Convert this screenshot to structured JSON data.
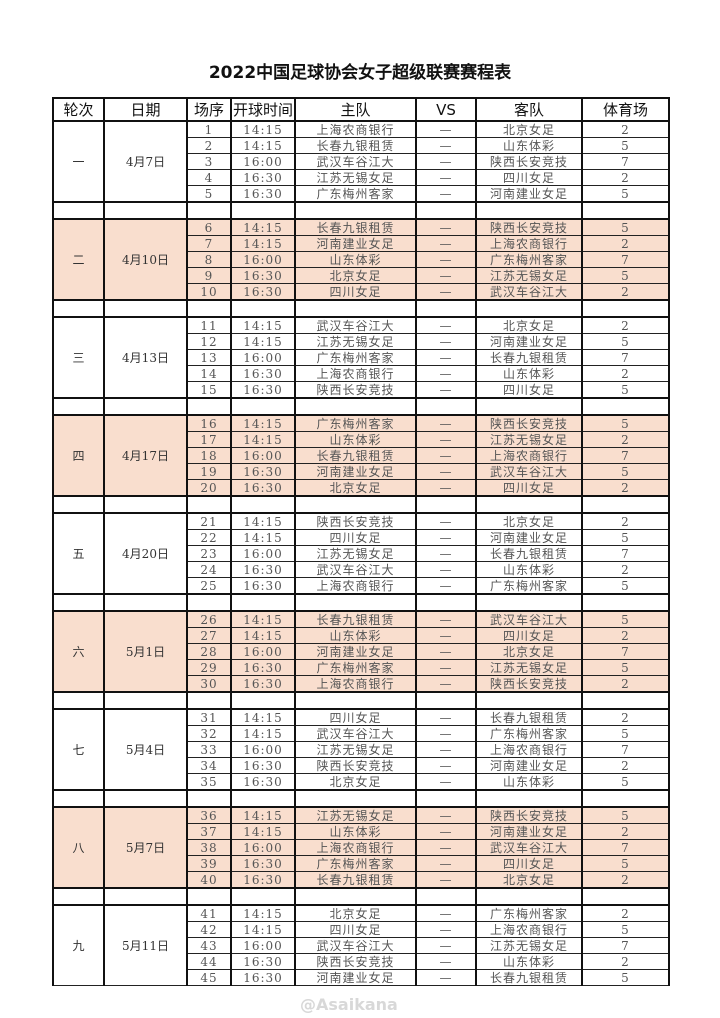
{
  "title": "2022中国足球协会女子超级联赛赛程表",
  "headers": [
    "轮次",
    "日期",
    "场序",
    "开球时间",
    "主队",
    "VS",
    "客队",
    "体育场"
  ],
  "vs_symbol": "—",
  "shade_color": "#f9dece",
  "rounds": [
    {
      "round": "一",
      "date": "4月7日",
      "shaded": false,
      "matches": [
        {
          "no": "1",
          "time": "14:15",
          "home": "上海农商银行",
          "away": "北京女足",
          "stadium": "2"
        },
        {
          "no": "2",
          "time": "14:15",
          "home": "长春九银租赁",
          "away": "山东体彩",
          "stadium": "5"
        },
        {
          "no": "3",
          "time": "16:00",
          "home": "武汉车谷江大",
          "away": "陕西长安竞技",
          "stadium": "7"
        },
        {
          "no": "4",
          "time": "16:30",
          "home": "江苏无锡女足",
          "away": "四川女足",
          "stadium": "2"
        },
        {
          "no": "5",
          "time": "16:30",
          "home": "广东梅州客家",
          "away": "河南建业女足",
          "stadium": "5"
        }
      ]
    },
    {
      "round": "二",
      "date": "4月10日",
      "shaded": true,
      "matches": [
        {
          "no": "6",
          "time": "14:15",
          "home": "长春九银租赁",
          "away": "陕西长安竞技",
          "stadium": "5"
        },
        {
          "no": "7",
          "time": "14:15",
          "home": "河南建业女足",
          "away": "上海农商银行",
          "stadium": "2"
        },
        {
          "no": "8",
          "time": "16:00",
          "home": "山东体彩",
          "away": "广东梅州客家",
          "stadium": "7"
        },
        {
          "no": "9",
          "time": "16:30",
          "home": "北京女足",
          "away": "江苏无锡女足",
          "stadium": "5"
        },
        {
          "no": "10",
          "time": "16:30",
          "home": "四川女足",
          "away": "武汉车谷江大",
          "stadium": "2"
        }
      ]
    },
    {
      "round": "三",
      "date": "4月13日",
      "shaded": false,
      "matches": [
        {
          "no": "11",
          "time": "14:15",
          "home": "武汉车谷江大",
          "away": "北京女足",
          "stadium": "2"
        },
        {
          "no": "12",
          "time": "14:15",
          "home": "江苏无锡女足",
          "away": "河南建业女足",
          "stadium": "5"
        },
        {
          "no": "13",
          "time": "16:00",
          "home": "广东梅州客家",
          "away": "长春九银租赁",
          "stadium": "7"
        },
        {
          "no": "14",
          "time": "16:30",
          "home": "上海农商银行",
          "away": "山东体彩",
          "stadium": "2"
        },
        {
          "no": "15",
          "time": "16:30",
          "home": "陕西长安竞技",
          "away": "四川女足",
          "stadium": "5"
        }
      ]
    },
    {
      "round": "四",
      "date": "4月17日",
      "shaded": true,
      "matches": [
        {
          "no": "16",
          "time": "14:15",
          "home": "广东梅州客家",
          "away": "陕西长安竞技",
          "stadium": "5"
        },
        {
          "no": "17",
          "time": "14:15",
          "home": "山东体彩",
          "away": "江苏无锡女足",
          "stadium": "2"
        },
        {
          "no": "18",
          "time": "16:00",
          "home": "长春九银租赁",
          "away": "上海农商银行",
          "stadium": "7"
        },
        {
          "no": "19",
          "time": "16:30",
          "home": "河南建业女足",
          "away": "武汉车谷江大",
          "stadium": "5"
        },
        {
          "no": "20",
          "time": "16:30",
          "home": "北京女足",
          "away": "四川女足",
          "stadium": "2"
        }
      ]
    },
    {
      "round": "五",
      "date": "4月20日",
      "shaded": false,
      "matches": [
        {
          "no": "21",
          "time": "14:15",
          "home": "陕西长安竞技",
          "away": "北京女足",
          "stadium": "2"
        },
        {
          "no": "22",
          "time": "14:15",
          "home": "四川女足",
          "away": "河南建业女足",
          "stadium": "5"
        },
        {
          "no": "23",
          "time": "16:00",
          "home": "江苏无锡女足",
          "away": "长春九银租赁",
          "stadium": "7"
        },
        {
          "no": "24",
          "time": "16:30",
          "home": "武汉车谷江大",
          "away": "山东体彩",
          "stadium": "2"
        },
        {
          "no": "25",
          "time": "16:30",
          "home": "上海农商银行",
          "away": "广东梅州客家",
          "stadium": "5"
        }
      ]
    },
    {
      "round": "六",
      "date": "5月1日",
      "shaded": true,
      "matches": [
        {
          "no": "26",
          "time": "14:15",
          "home": "长春九银租赁",
          "away": "武汉车谷江大",
          "stadium": "5"
        },
        {
          "no": "27",
          "time": "14:15",
          "home": "山东体彩",
          "away": "四川女足",
          "stadium": "2"
        },
        {
          "no": "28",
          "time": "16:00",
          "home": "河南建业女足",
          "away": "北京女足",
          "stadium": "7"
        },
        {
          "no": "29",
          "time": "16:30",
          "home": "广东梅州客家",
          "away": "江苏无锡女足",
          "stadium": "5"
        },
        {
          "no": "30",
          "time": "16:30",
          "home": "上海农商银行",
          "away": "陕西长安竞技",
          "stadium": "2"
        }
      ]
    },
    {
      "round": "七",
      "date": "5月4日",
      "shaded": false,
      "matches": [
        {
          "no": "31",
          "time": "14:15",
          "home": "四川女足",
          "away": "长春九银租赁",
          "stadium": "2"
        },
        {
          "no": "32",
          "time": "14:15",
          "home": "武汉车谷江大",
          "away": "广东梅州客家",
          "stadium": "5"
        },
        {
          "no": "33",
          "time": "16:00",
          "home": "江苏无锡女足",
          "away": "上海农商银行",
          "stadium": "7"
        },
        {
          "no": "34",
          "time": "16:30",
          "home": "陕西长安竞技",
          "away": "河南建业女足",
          "stadium": "2"
        },
        {
          "no": "35",
          "time": "16:30",
          "home": "北京女足",
          "away": "山东体彩",
          "stadium": "5"
        }
      ]
    },
    {
      "round": "八",
      "date": "5月7日",
      "shaded": true,
      "matches": [
        {
          "no": "36",
          "time": "14:15",
          "home": "江苏无锡女足",
          "away": "陕西长安竞技",
          "stadium": "5"
        },
        {
          "no": "37",
          "time": "14:15",
          "home": "山东体彩",
          "away": "河南建业女足",
          "stadium": "2"
        },
        {
          "no": "38",
          "time": "16:00",
          "home": "上海农商银行",
          "away": "武汉车谷江大",
          "stadium": "7"
        },
        {
          "no": "39",
          "time": "16:30",
          "home": "广东梅州客家",
          "away": "四川女足",
          "stadium": "5"
        },
        {
          "no": "40",
          "time": "16:30",
          "home": "长春九银租赁",
          "away": "北京女足",
          "stadium": "2"
        }
      ]
    },
    {
      "round": "九",
      "date": "5月11日",
      "shaded": false,
      "matches": [
        {
          "no": "41",
          "time": "14:15",
          "home": "北京女足",
          "away": "广东梅州客家",
          "stadium": "2"
        },
        {
          "no": "42",
          "time": "14:15",
          "home": "四川女足",
          "away": "上海农商银行",
          "stadium": "5"
        },
        {
          "no": "43",
          "time": "16:00",
          "home": "武汉车谷江大",
          "away": "江苏无锡女足",
          "stadium": "7"
        },
        {
          "no": "44",
          "time": "16:30",
          "home": "陕西长安竞技",
          "away": "山东体彩",
          "stadium": "2"
        },
        {
          "no": "45",
          "time": "16:30",
          "home": "河南建业女足",
          "away": "长春九银租赁",
          "stadium": "5"
        }
      ]
    }
  ],
  "watermark": "@Asaikana"
}
